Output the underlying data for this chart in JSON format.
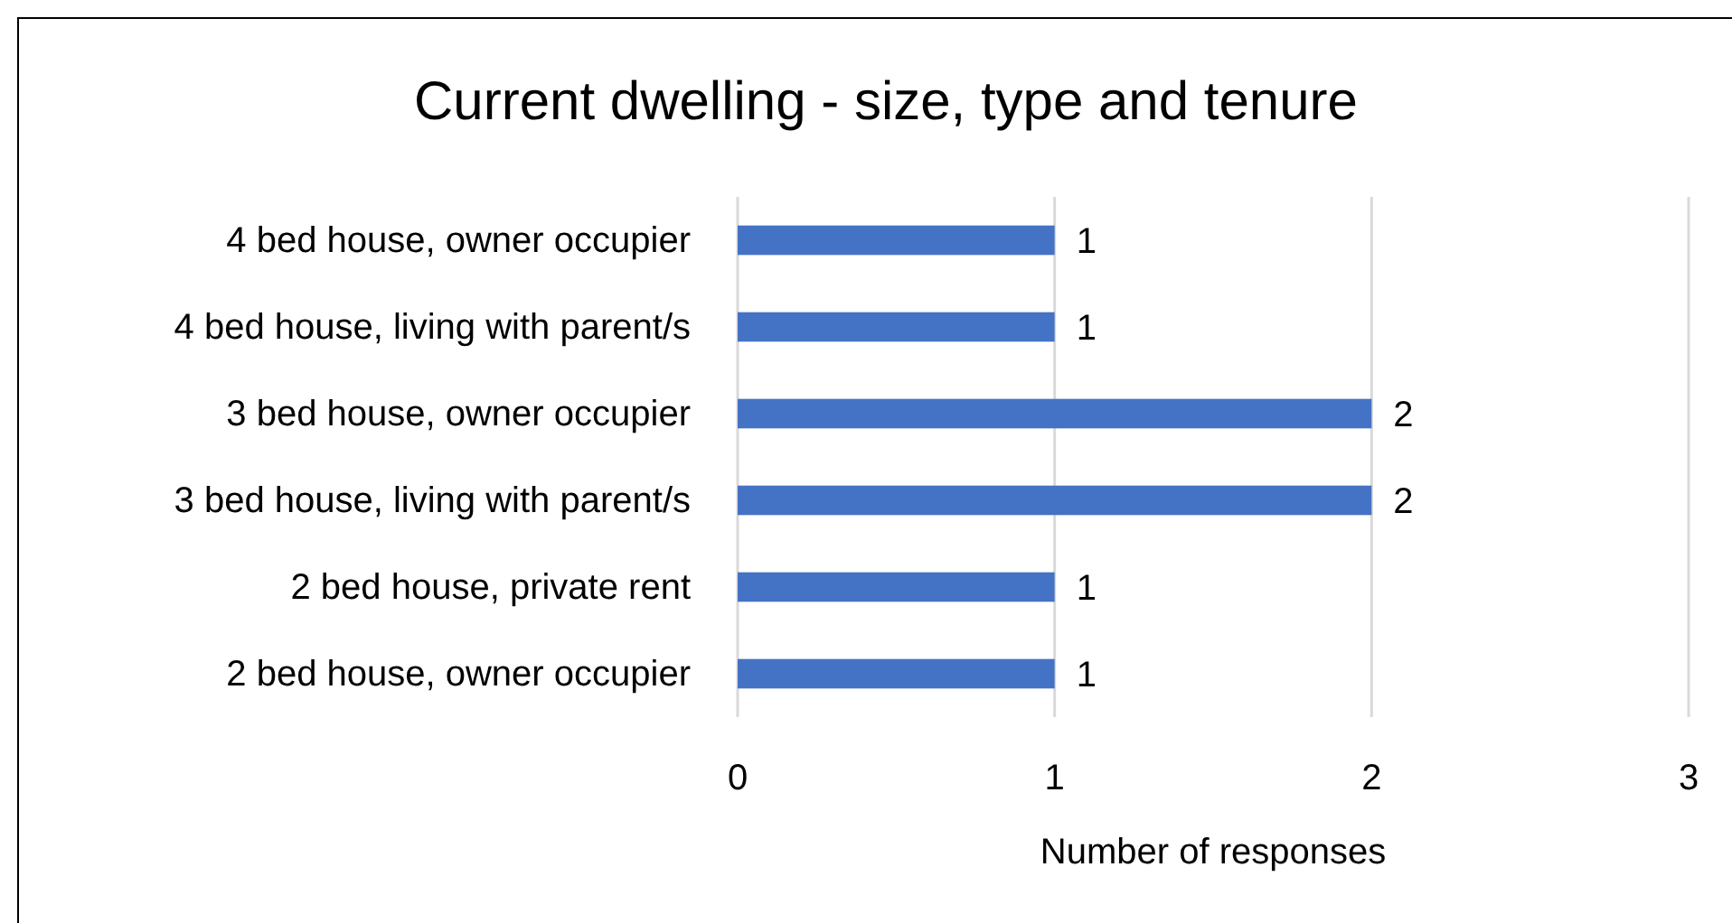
{
  "chart_data": {
    "type": "bar",
    "orientation": "horizontal",
    "title": "Current dwelling - size, type and tenure",
    "xlabel": "Number of responses",
    "categories": [
      "4 bed house, owner occupier",
      "4 bed house, living with parent/s",
      "3 bed house, owner occupier",
      "3 bed house, living with parent/s",
      "2 bed house, private rent",
      "2 bed house, owner occupier"
    ],
    "values": [
      1,
      1,
      2,
      2,
      1,
      1
    ],
    "color": "#4472c4",
    "xlim": [
      0,
      3
    ],
    "xticks": [
      0,
      1,
      2,
      3
    ],
    "grid": "x",
    "data_labels": true
  }
}
